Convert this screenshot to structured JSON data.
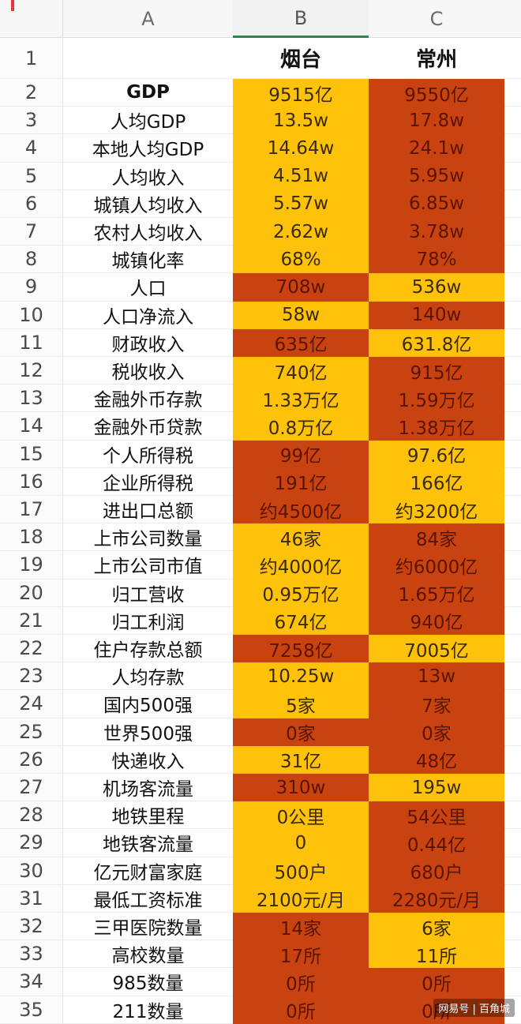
{
  "columns": {
    "a": "A",
    "b": "B",
    "c": "C"
  },
  "header_row": {
    "num": "1",
    "b": "烟台",
    "c": "常州"
  },
  "colors": {
    "yellow": "#ffc20a",
    "red": "#c8430f",
    "text_on_yellow": "#3a2a00",
    "text_on_red": "#5a1400"
  },
  "rows": [
    {
      "num": "2",
      "label": "GDP",
      "b": "9515亿",
      "c": "9550亿",
      "bc": "yellow",
      "cc": "red"
    },
    {
      "num": "3",
      "label": "人均GDP",
      "b": "13.5w",
      "c": "17.8w",
      "bc": "yellow",
      "cc": "red"
    },
    {
      "num": "4",
      "label": "本地人均GDP",
      "b": "14.64w",
      "c": "24.1w",
      "bc": "yellow",
      "cc": "red"
    },
    {
      "num": "5",
      "label": "人均收入",
      "b": "4.51w",
      "c": "5.95w",
      "bc": "yellow",
      "cc": "red"
    },
    {
      "num": "6",
      "label": "城镇人均收入",
      "b": "5.57w",
      "c": "6.85w",
      "bc": "yellow",
      "cc": "red"
    },
    {
      "num": "7",
      "label": "农村人均收入",
      "b": "2.62w",
      "c": "3.78w",
      "bc": "yellow",
      "cc": "red"
    },
    {
      "num": "8",
      "label": "城镇化率",
      "b": "68%",
      "c": "78%",
      "bc": "yellow",
      "cc": "red"
    },
    {
      "num": "9",
      "label": "人口",
      "b": "708w",
      "c": "536w",
      "bc": "red",
      "cc": "yellow"
    },
    {
      "num": "10",
      "label": "人口净流入",
      "b": "58w",
      "c": "140w",
      "bc": "yellow",
      "cc": "red"
    },
    {
      "num": "11",
      "label": "财政收入",
      "b": "635亿",
      "c": "631.8亿",
      "bc": "red",
      "cc": "yellow"
    },
    {
      "num": "12",
      "label": "税收收入",
      "b": "740亿",
      "c": "915亿",
      "bc": "yellow",
      "cc": "red"
    },
    {
      "num": "13",
      "label": "金融外币存款",
      "b": "1.33万亿",
      "c": "1.59万亿",
      "bc": "yellow",
      "cc": "red"
    },
    {
      "num": "14",
      "label": "金融外币贷款",
      "b": "0.8万亿",
      "c": "1.38万亿",
      "bc": "yellow",
      "cc": "red"
    },
    {
      "num": "15",
      "label": "个人所得税",
      "b": "99亿",
      "c": "97.6亿",
      "bc": "red",
      "cc": "yellow"
    },
    {
      "num": "16",
      "label": "企业所得税",
      "b": "191亿",
      "c": "166亿",
      "bc": "red",
      "cc": "yellow"
    },
    {
      "num": "17",
      "label": "进出口总额",
      "b": "约4500亿",
      "c": "约3200亿",
      "bc": "red",
      "cc": "yellow"
    },
    {
      "num": "18",
      "label": "上市公司数量",
      "b": "46家",
      "c": "84家",
      "bc": "yellow",
      "cc": "red"
    },
    {
      "num": "19",
      "label": "上市公司市值",
      "b": "约4000亿",
      "c": "约6000亿",
      "bc": "yellow",
      "cc": "red"
    },
    {
      "num": "20",
      "label": "归工营收",
      "b": "0.95万亿",
      "c": "1.65万亿",
      "bc": "yellow",
      "cc": "red"
    },
    {
      "num": "21",
      "label": "归工利润",
      "b": "674亿",
      "c": "940亿",
      "bc": "yellow",
      "cc": "red"
    },
    {
      "num": "22",
      "label": "住户存款总额",
      "b": "7258亿",
      "c": "7005亿",
      "bc": "red",
      "cc": "yellow"
    },
    {
      "num": "23",
      "label": "人均存款",
      "b": "10.25w",
      "c": "13w",
      "bc": "yellow",
      "cc": "red"
    },
    {
      "num": "24",
      "label": "国内500强",
      "b": "5家",
      "c": "7家",
      "bc": "yellow",
      "cc": "red"
    },
    {
      "num": "25",
      "label": "世界500强",
      "b": "0家",
      "c": "0家",
      "bc": "red",
      "cc": "red"
    },
    {
      "num": "26",
      "label": "快递收入",
      "b": "31亿",
      "c": "48亿",
      "bc": "yellow",
      "cc": "red"
    },
    {
      "num": "27",
      "label": "机场客流量",
      "b": "310w",
      "c": "195w",
      "bc": "red",
      "cc": "yellow"
    },
    {
      "num": "28",
      "label": "地铁里程",
      "b": "0公里",
      "c": "54公里",
      "bc": "yellow",
      "cc": "red"
    },
    {
      "num": "29",
      "label": "地铁客流量",
      "b": "0",
      "c": "0.44亿",
      "bc": "yellow",
      "cc": "red"
    },
    {
      "num": "30",
      "label": "亿元财富家庭",
      "b": "500户",
      "c": "680户",
      "bc": "yellow",
      "cc": "red"
    },
    {
      "num": "31",
      "label": "最低工资标准",
      "b": "2100元/月",
      "c": "2280元/月",
      "bc": "yellow",
      "cc": "red"
    },
    {
      "num": "32",
      "label": "三甲医院数量",
      "b": "14家",
      "c": "6家",
      "bc": "red",
      "cc": "yellow"
    },
    {
      "num": "33",
      "label": "高校数量",
      "b": "17所",
      "c": "11所",
      "bc": "red",
      "cc": "yellow"
    },
    {
      "num": "34",
      "label": "985数量",
      "b": "0所",
      "c": "0所",
      "bc": "red",
      "cc": "red"
    },
    {
      "num": "35",
      "label": "211数量",
      "b": "0所",
      "c": "0所",
      "bc": "red",
      "cc": "red"
    }
  ],
  "watermark": "网易号 | 百角城"
}
